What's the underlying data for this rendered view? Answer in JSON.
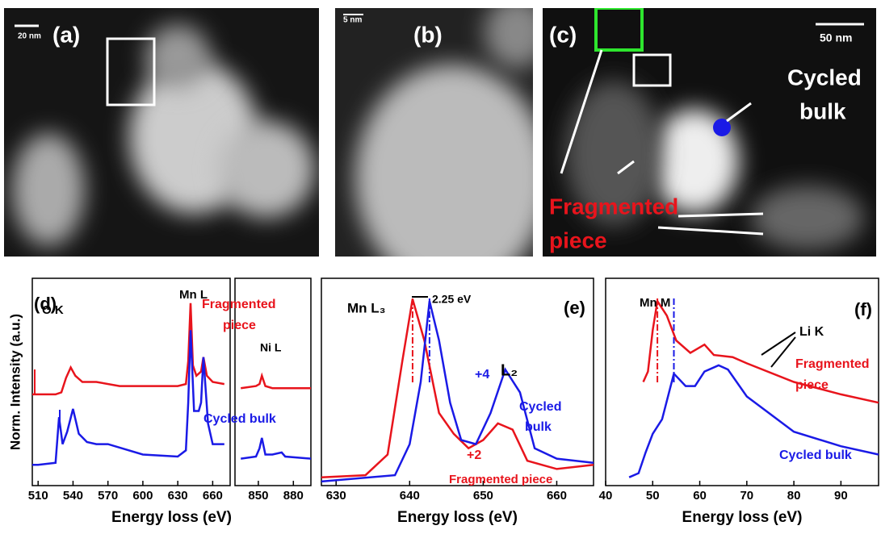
{
  "images": [
    {
      "label": "(a)",
      "scale": "20 nm"
    },
    {
      "label": "(b)",
      "scale": "5 nm"
    },
    {
      "label": "(c)",
      "scale": "50 nm",
      "texts": [
        "Cycled",
        "bulk",
        "Fragmented",
        "piece"
      ]
    }
  ],
  "chart_data": [
    {
      "type": "line",
      "x_label": "Energy loss (eV)",
      "y_label": "Norm. Intensity (a.u.)",
      "xlim": [
        [
          505,
          675
        ],
        [
          830,
          895
        ]
      ],
      "ylim": [
        0,
        10
      ],
      "xticks": [
        510,
        540,
        570,
        600,
        630,
        660,
        850,
        880
      ],
      "annotations": [
        {
          "text": "(d)",
          "color": "#000"
        },
        {
          "text": "O K",
          "color": "#000"
        },
        {
          "text": "Mn L",
          "color": "#000"
        },
        {
          "text": "Fragmented",
          "color": "#e8141c"
        },
        {
          "text": "piece",
          "color": "#e8141c"
        },
        {
          "text": "Ni L",
          "color": "#000"
        },
        {
          "text": "Cycled bulk",
          "color": "#1a1ae6"
        }
      ],
      "series": [
        {
          "name": "Fragmented piece",
          "color": "#e8141c",
          "x": [
            505,
            510,
            525,
            530,
            534,
            538,
            542,
            548,
            560,
            580,
            600,
            630,
            637,
            639,
            641,
            643,
            646,
            650,
            652,
            655,
            660,
            670,
            null,
            835,
            848,
            851,
            853,
            856,
            862,
            870,
            895
          ],
          "values": [
            4.4,
            4.4,
            4.4,
            4.5,
            5.2,
            5.7,
            5.3,
            5.0,
            5.0,
            4.8,
            4.8,
            4.8,
            4.9,
            6.0,
            8.8,
            5.8,
            5.3,
            5.5,
            6.2,
            5.3,
            5.0,
            4.9,
            null,
            4.7,
            4.8,
            4.9,
            5.3,
            4.8,
            4.7,
            4.7,
            4.7
          ]
        },
        {
          "name": "Cycled bulk",
          "color": "#1a1ae6",
          "x": [
            505,
            510,
            525,
            528,
            531,
            535,
            540,
            545,
            552,
            560,
            570,
            600,
            630,
            637,
            639,
            641,
            644,
            648,
            650,
            652,
            656,
            660,
            670,
            null,
            835,
            848,
            851,
            853,
            856,
            862,
            870,
            873,
            895
          ],
          "values": [
            1.0,
            1.0,
            1.1,
            3.3,
            2.0,
            2.6,
            3.7,
            2.5,
            2.1,
            2.0,
            2.0,
            1.5,
            1.4,
            1.7,
            4.0,
            7.5,
            3.6,
            3.6,
            4.0,
            6.2,
            3.0,
            2.0,
            2.0,
            null,
            1.3,
            1.4,
            1.8,
            2.3,
            1.5,
            1.5,
            1.6,
            1.4,
            1.3
          ]
        }
      ]
    },
    {
      "type": "line",
      "x_label": "Energy loss (eV)",
      "xlim": [
        628,
        665
      ],
      "ylim": [
        0,
        10
      ],
      "xticks": [
        630,
        640,
        650,
        660
      ],
      "annotations": [
        {
          "text": "Mn L₃",
          "color": "#000"
        },
        {
          "text": "2.25 eV",
          "color": "#000"
        },
        {
          "text": "(e)",
          "color": "#000"
        },
        {
          "text": "L₂",
          "color": "#000"
        },
        {
          "text": "+4",
          "color": "#1a1ae6"
        },
        {
          "text": "+2",
          "color": "#e8141c"
        },
        {
          "text": "Cycled",
          "color": "#1a1ae6"
        },
        {
          "text": "bulk",
          "color": "#1a1ae6"
        },
        {
          "text": "Fragmented piece",
          "color": "#e8141c"
        }
      ],
      "vlines": [
        {
          "x": 640.4,
          "color": "#e8141c"
        },
        {
          "x": 642.7,
          "color": "#1a1ae6"
        }
      ],
      "series": [
        {
          "name": "Fragmented piece",
          "color": "#e8141c",
          "x": [
            628,
            634,
            637,
            639,
            640.4,
            642,
            644,
            646,
            648,
            650,
            652,
            654,
            656,
            658,
            660,
            665
          ],
          "values": [
            0.4,
            0.5,
            1.5,
            6.0,
            9.0,
            7.0,
            3.5,
            2.5,
            1.8,
            2.2,
            3.0,
            2.7,
            1.2,
            1.0,
            0.8,
            1.0
          ]
        },
        {
          "name": "Cycled bulk",
          "color": "#1a1ae6",
          "x": [
            628,
            638,
            640,
            641.5,
            642.7,
            644,
            645.5,
            647,
            649,
            651,
            653,
            655,
            657,
            660,
            665
          ],
          "values": [
            0.2,
            0.5,
            2.0,
            5.0,
            8.9,
            7.0,
            4.0,
            2.2,
            2.0,
            3.5,
            5.6,
            4.5,
            1.8,
            1.3,
            1.1
          ]
        }
      ]
    },
    {
      "type": "line",
      "x_label": "Energy loss (eV)",
      "xlim": [
        40,
        98
      ],
      "ylim": [
        0,
        10
      ],
      "xticks": [
        40,
        50,
        60,
        70,
        80,
        90
      ],
      "annotations": [
        {
          "text": "Mn M",
          "color": "#000"
        },
        {
          "text": "(f)",
          "color": "#000"
        },
        {
          "text": "Li K",
          "color": "#000"
        },
        {
          "text": "Fragmented",
          "color": "#e8141c"
        },
        {
          "text": "piece",
          "color": "#e8141c"
        },
        {
          "text": "Cycled bulk",
          "color": "#1a1ae6"
        }
      ],
      "vlines": [
        {
          "x": 51,
          "color": "#e8141c"
        },
        {
          "x": 54.5,
          "color": "#1a1ae6"
        }
      ],
      "series": [
        {
          "name": "Fragmented piece",
          "color": "#e8141c",
          "x": [
            48,
            49,
            50,
            51,
            53,
            55,
            58,
            61,
            63,
            67,
            70,
            80,
            90,
            98
          ],
          "values": [
            5.0,
            5.5,
            7.5,
            8.9,
            8.2,
            7.0,
            6.4,
            6.8,
            6.3,
            6.2,
            5.9,
            5.0,
            4.4,
            4.0
          ]
        },
        {
          "name": "Cycled bulk",
          "color": "#1a1ae6",
          "x": [
            45,
            47,
            48.5,
            50,
            52,
            54.5,
            57,
            59,
            61,
            64,
            66,
            70,
            80,
            90,
            98
          ],
          "values": [
            0.4,
            0.6,
            1.6,
            2.5,
            3.2,
            5.4,
            4.8,
            4.8,
            5.5,
            5.8,
            5.6,
            4.3,
            2.6,
            1.9,
            1.5
          ]
        }
      ]
    }
  ]
}
